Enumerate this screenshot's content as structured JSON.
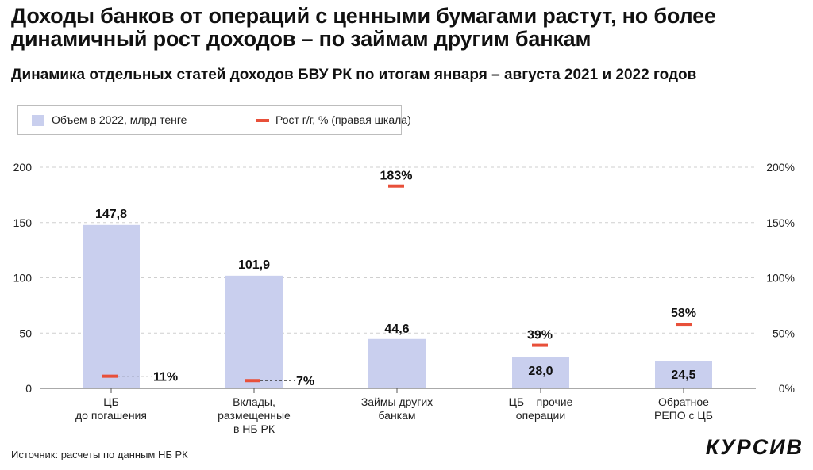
{
  "header": {
    "title": "Доходы банков от операций с ценными бумагами растут, но более динамичный рост доходов – по займам другим банкам",
    "subtitle": "Динамика отдельных статей доходов БВУ РК по итогам января – августа 2021 и 2022 годов"
  },
  "legend": {
    "volume_label": "Объем в 2022, млрд тенге",
    "growth_label": "Рост г/г, % (правая шкала)"
  },
  "chart_data": {
    "type": "bar",
    "categories": [
      [
        "ЦБ",
        "до погашения"
      ],
      [
        "Вклады,",
        "размещенные",
        "в НБ РК"
      ],
      [
        "Займы других",
        "банкам"
      ],
      [
        "ЦБ – прочие",
        "операции"
      ],
      [
        "Обратное",
        "РЕПО с ЦБ"
      ]
    ],
    "series": [
      {
        "name": "Объем в 2022, млрд тенге",
        "values": [
          147.8,
          101.9,
          44.6,
          28.0,
          24.5
        ],
        "labels": [
          "147,8",
          "101,9",
          "44,6",
          "28,0",
          "24,5"
        ],
        "color": "#c9cfee",
        "axis": "left"
      },
      {
        "name": "Рост г/г, % (правая шкала)",
        "values": [
          11,
          7,
          183,
          39,
          58
        ],
        "labels": [
          "11%",
          "7%",
          "183%",
          "39%",
          "58%"
        ],
        "color": "#e8503a",
        "axis": "right"
      }
    ],
    "y_left": {
      "min": 0,
      "max": 200,
      "ticks": [
        "0",
        "50",
        "100",
        "150",
        "200"
      ]
    },
    "y_right": {
      "min": 0,
      "max": 200,
      "ticks": [
        "0%",
        "50%",
        "100%",
        "150%",
        "200%"
      ]
    },
    "grid": true
  },
  "footer": {
    "source": "Источник: расчеты по данным НБ РК",
    "logo": "КУРСИВ"
  }
}
